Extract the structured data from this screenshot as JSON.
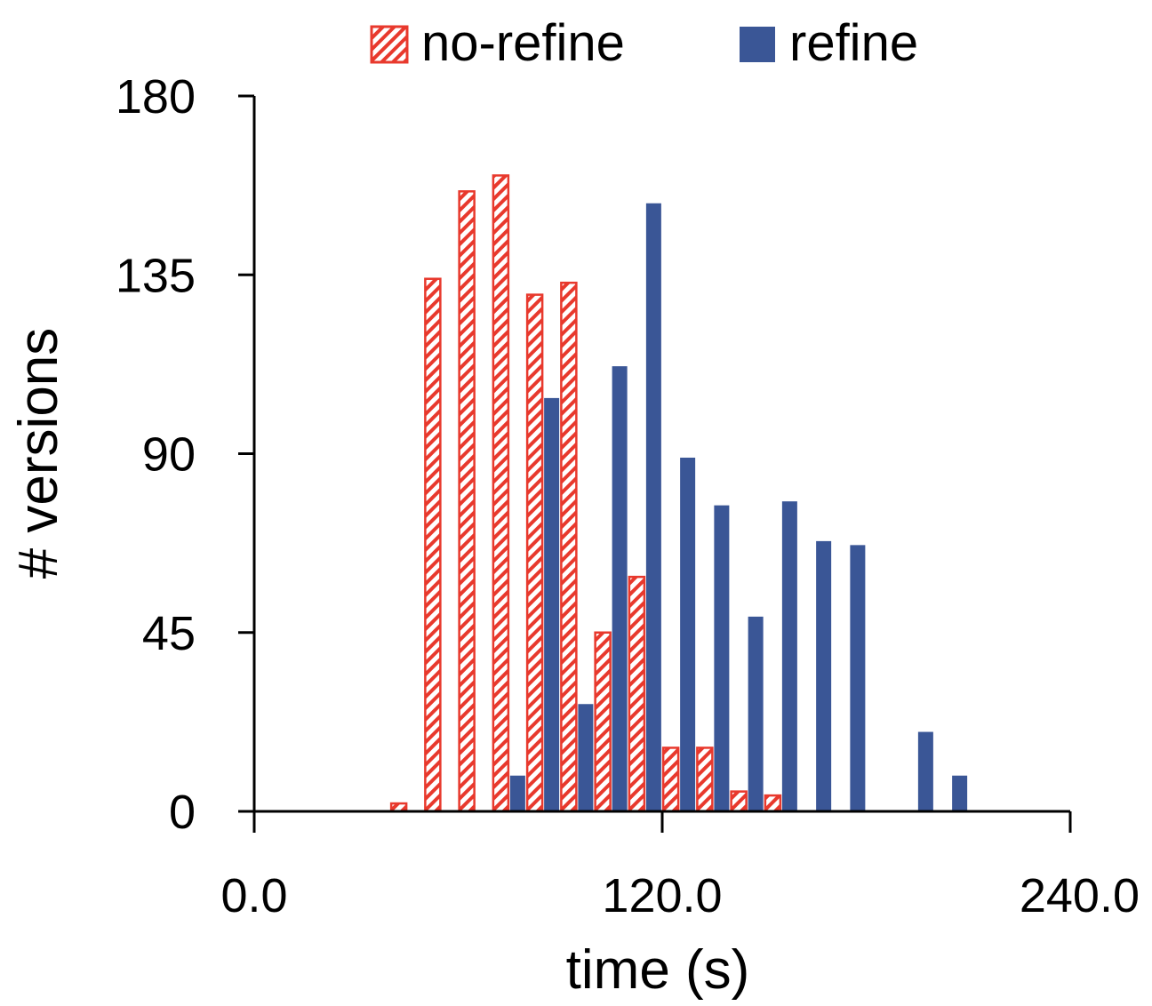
{
  "chart_data": {
    "type": "bar",
    "title": "",
    "xlabel": "time (s)",
    "ylabel": "# versions",
    "xlim": [
      0,
      240
    ],
    "ylim": [
      0,
      180
    ],
    "x_ticks": [
      "0.0",
      "120.0",
      "240.0"
    ],
    "x_tick_values": [
      0,
      120,
      240
    ],
    "y_ticks": [
      "0",
      "45",
      "90",
      "135",
      "180"
    ],
    "y_tick_values": [
      0,
      45,
      90,
      135,
      180
    ],
    "grid": false,
    "legend_position": "top",
    "bin_width": 10,
    "series": [
      {
        "name": "no-refine",
        "color": "#e8392d",
        "pattern": "diagonal-hatch",
        "x": [
          45,
          55,
          65,
          75,
          85,
          95,
          105,
          115,
          125,
          135,
          145,
          155
        ],
        "values": [
          2,
          134,
          156,
          160,
          130,
          133,
          45,
          59,
          16,
          16,
          5,
          4
        ]
      },
      {
        "name": "refine",
        "color": "#3a5696",
        "pattern": "solid",
        "x": [
          75,
          85,
          95,
          105,
          115,
          125,
          135,
          145,
          155,
          165,
          175,
          195
        ],
        "values": [
          9,
          104,
          27,
          112,
          153,
          89,
          77,
          49,
          78,
          68,
          67,
          20
        ]
      },
      {
        "name_hidden_note": "",
        "color": "#3a5696",
        "pattern": "solid",
        "x": [
          205
        ],
        "values": [
          9
        ]
      }
    ]
  }
}
